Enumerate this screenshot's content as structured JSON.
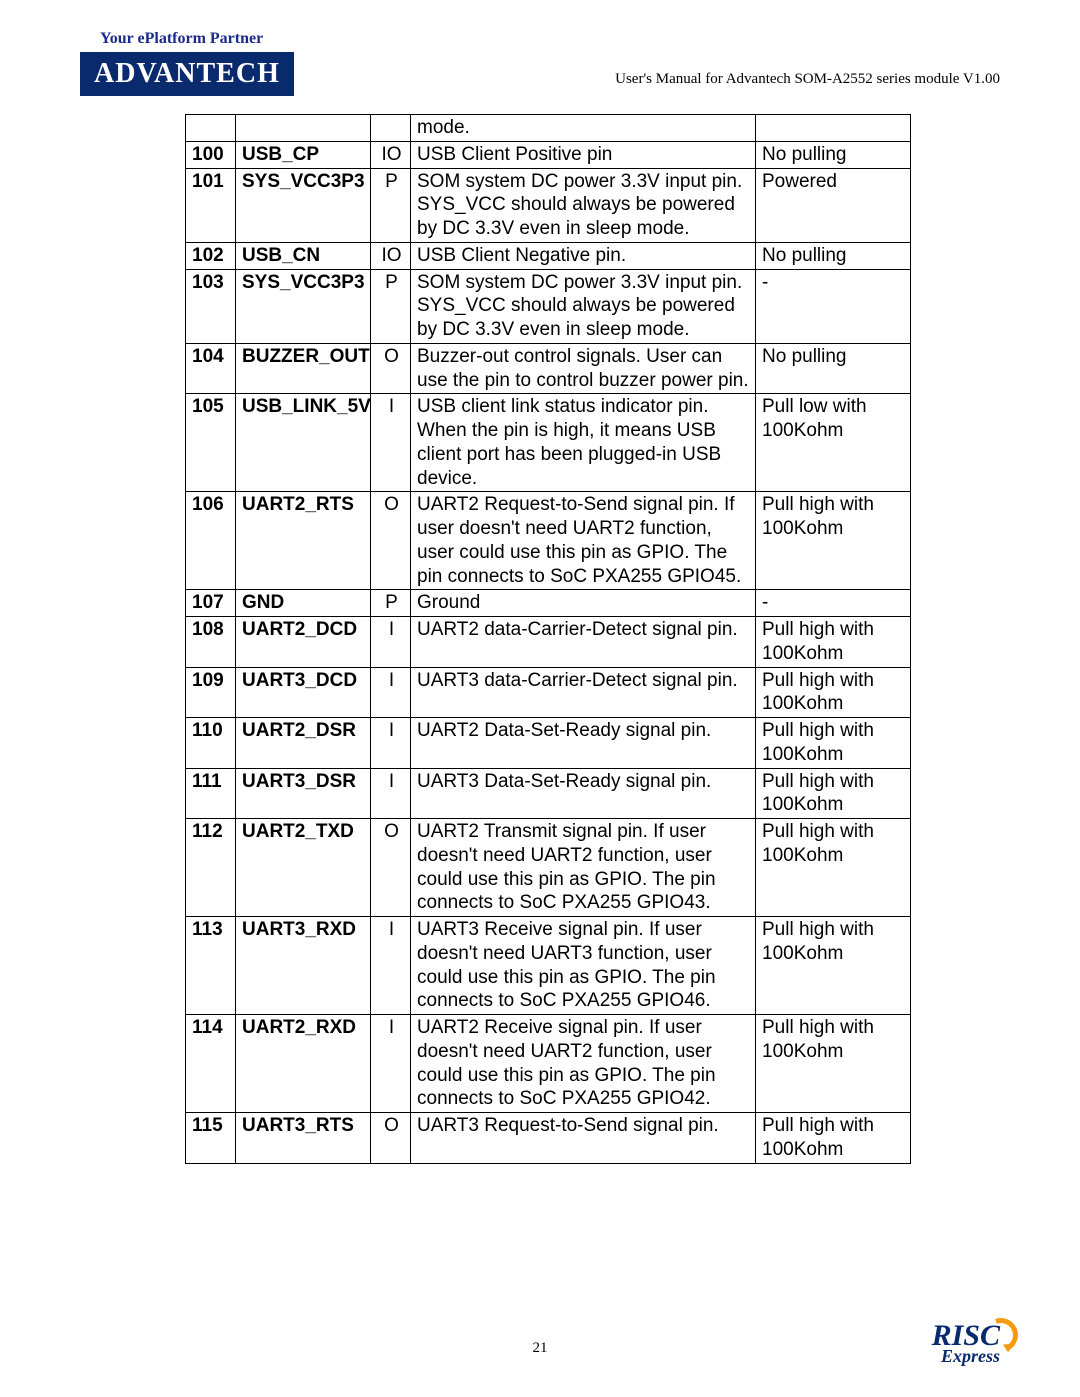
{
  "header": {
    "tagline": "Your ePlatform Partner",
    "logo_text": "ADVANTECH",
    "doc_title": "User's Manual for Advantech SOM-A2552 series module V1.00"
  },
  "table": {
    "rows": [
      {
        "pin": "",
        "name": "",
        "dir": "",
        "desc": "mode.",
        "note": "",
        "name_bold": false
      },
      {
        "pin": "100",
        "name": "USB_CP",
        "dir": "IO",
        "desc": "USB Client Positive pin",
        "note": "No pulling",
        "name_bold": true
      },
      {
        "pin": "101",
        "name": "SYS_VCC3P3",
        "dir": "P",
        "desc": "SOM system DC power 3.3V input pin. SYS_VCC should always be powered by DC 3.3V even in sleep mode.",
        "note": "Powered",
        "name_bold": true
      },
      {
        "pin": "102",
        "name": "USB_CN",
        "dir": "IO",
        "desc": "USB Client Negative pin.",
        "note": "No pulling",
        "name_bold": true
      },
      {
        "pin": "103",
        "name": "SYS_VCC3P3",
        "dir": "P",
        "desc": "SOM system DC power 3.3V input pin. SYS_VCC should always be powered by DC 3.3V even in sleep mode.",
        "note": "-",
        "name_bold": true
      },
      {
        "pin": "104",
        "name": "BUZZER_OUT",
        "dir": "O",
        "desc": "Buzzer-out control signals. User can use the pin to control buzzer power pin.",
        "note": "No pulling",
        "name_bold": true
      },
      {
        "pin": "105",
        "name": "USB_LINK_5V",
        "dir": "I",
        "desc": "USB client link status indicator pin. When the pin is high, it means USB client port has been plugged-in USB device.",
        "note": "Pull low with 100Kohm",
        "name_bold": true
      },
      {
        "pin": "106",
        "name": "UART2_RTS",
        "dir": "O",
        "desc": "UART2 Request-to-Send signal pin. If user doesn't need UART2 function, user could use this pin as GPIO. The pin connects to SoC PXA255 GPIO45.",
        "note": "Pull high with 100Kohm",
        "name_bold": true
      },
      {
        "pin": "107",
        "name": "GND",
        "dir": "P",
        "desc": "Ground",
        "note": "-",
        "name_bold": true
      },
      {
        "pin": "108",
        "name": "UART2_DCD",
        "dir": "I",
        "desc": "UART2 data-Carrier-Detect signal pin.",
        "note": "Pull high with 100Kohm",
        "name_bold": true
      },
      {
        "pin": "109",
        "name": "UART3_DCD",
        "dir": "I",
        "desc": "UART3 data-Carrier-Detect signal pin.",
        "note": "Pull high with 100Kohm",
        "name_bold": true
      },
      {
        "pin": "110",
        "name": "UART2_DSR",
        "dir": "I",
        "desc": "UART2 Data-Set-Ready signal pin.",
        "note": "Pull high with 100Kohm",
        "name_bold": true
      },
      {
        "pin": "111",
        "name": "UART3_DSR",
        "dir": "I",
        "desc": "UART3 Data-Set-Ready signal pin.",
        "note": "Pull high with 100Kohm",
        "name_bold": true
      },
      {
        "pin": "112",
        "name": "UART2_TXD",
        "dir": "O",
        "desc": "UART2 Transmit signal pin. If user doesn't need UART2 function, user could use this pin as GPIO. The pin connects to SoC PXA255 GPIO43.",
        "note": "Pull high with 100Kohm",
        "name_bold": true
      },
      {
        "pin": "113",
        "name": "UART3_RXD",
        "dir": "I",
        "desc": "UART3 Receive signal pin. If user doesn't need UART3 function, user could use this pin as GPIO. The pin connects to SoC PXA255 GPIO46.",
        "note": "Pull high with 100Kohm",
        "name_bold": true
      },
      {
        "pin": "114",
        "name": "UART2_RXD",
        "dir": "I",
        "desc": "UART2 Receive signal pin. If user doesn't need UART2 function, user could use this pin as GPIO. The pin connects to SoC PXA255 GPIO42.",
        "note": "Pull high with 100Kohm",
        "name_bold": true
      },
      {
        "pin": "115",
        "name": "UART3_RTS",
        "dir": "O",
        "desc": "UART3 Request-to-Send signal pin.",
        "note": "Pull high with 100Kohm",
        "name_bold": true
      }
    ]
  },
  "footer": {
    "page_num": "21",
    "risc": "RISC",
    "express": "Express"
  }
}
